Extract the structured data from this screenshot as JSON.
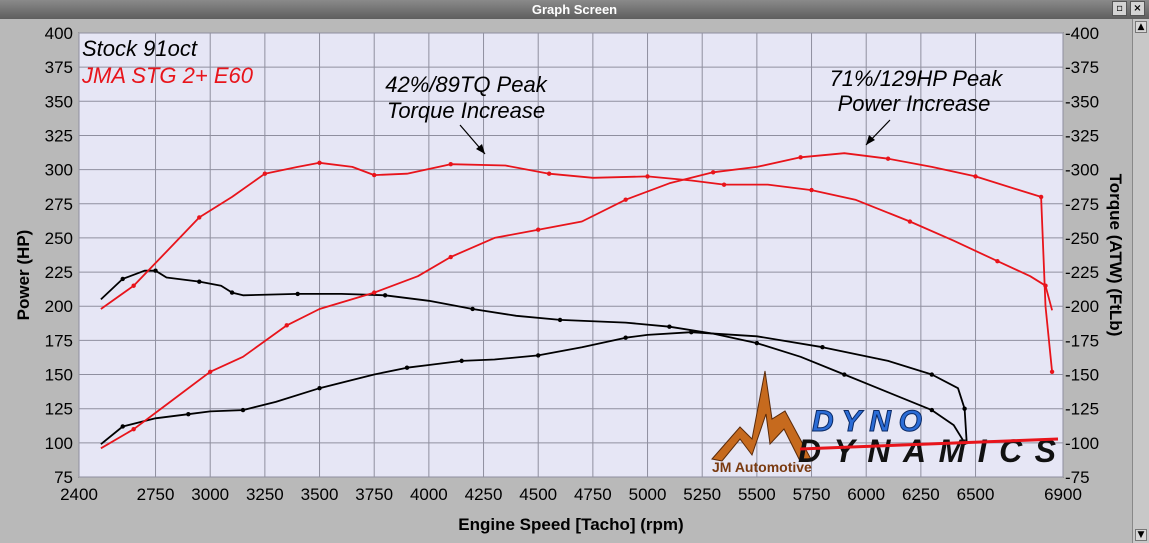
{
  "window": {
    "title": "Graph Screen"
  },
  "colors": {
    "plot_bg": "#e6e6f5",
    "grid": "#8f8f9f",
    "stock": "#000000",
    "tuned": "#e8141b"
  },
  "legend": {
    "stock": "Stock 91oct",
    "tuned": "JMA STG 2+ E60"
  },
  "annotations": {
    "torque": {
      "line1": "42%/89TQ Peak",
      "line2": "Torque Increase"
    },
    "power": {
      "line1": "71%/129HP Peak",
      "line2": "Power Increase"
    }
  },
  "logo": {
    "brand": "DYNO DYNAMICS",
    "dealer": "JM Automotive"
  },
  "chart_data": {
    "type": "line",
    "xlabel": "Engine Speed [Tacho] (rpm)",
    "ylabel_left": "Power (HP)",
    "ylabel_right": "Torque (ATW) (FtLb)",
    "xlim": [
      2400,
      6900
    ],
    "ylim": [
      75,
      400
    ],
    "x_ticks": [
      2400,
      2750,
      3000,
      3250,
      3500,
      3750,
      4000,
      4250,
      4500,
      4750,
      5000,
      5250,
      5500,
      5750,
      6000,
      6250,
      6500,
      6900
    ],
    "y_ticks": [
      75,
      100,
      125,
      150,
      175,
      200,
      225,
      250,
      275,
      300,
      325,
      350,
      375,
      400
    ],
    "grid": true,
    "legend_position": "top-left",
    "series": [
      {
        "name": "Stock 91oct",
        "metric": "power",
        "color": "#000000",
        "x": [
          2500,
          2600,
          2750,
          2900,
          3000,
          3150,
          3300,
          3500,
          3750,
          3900,
          4000,
          4150,
          4300,
          4500,
          4700,
          4900,
          5000,
          5200,
          5500,
          5800,
          6100,
          6300,
          6420,
          6450,
          6460
        ],
        "y": [
          99,
          112,
          118,
          121,
          123,
          124,
          130,
          140,
          150,
          155,
          157,
          160,
          161,
          164,
          170,
          177,
          179,
          181,
          178,
          170,
          160,
          150,
          140,
          125,
          99
        ]
      },
      {
        "name": "Stock 91oct",
        "metric": "torque",
        "color": "#000000",
        "x": [
          2500,
          2600,
          2700,
          2750,
          2800,
          2950,
          3050,
          3100,
          3150,
          3400,
          3600,
          3800,
          4000,
          4200,
          4400,
          4600,
          4900,
          5100,
          5300,
          5500,
          5700,
          5900,
          6100,
          6300,
          6400,
          6450
        ],
        "y": [
          205,
          220,
          226,
          226,
          221,
          218,
          215,
          210,
          208,
          209,
          209,
          208,
          204,
          198,
          193,
          190,
          188,
          185,
          180,
          173,
          163,
          150,
          137,
          124,
          113,
          100
        ]
      },
      {
        "name": "JMA STG 2+ E60",
        "metric": "power",
        "color": "#e8141b",
        "x": [
          2500,
          2650,
          2800,
          3000,
          3150,
          3350,
          3500,
          3750,
          3950,
          4100,
          4300,
          4500,
          4700,
          4900,
          5100,
          5300,
          5500,
          5700,
          5900,
          6100,
          6300,
          6500,
          6700,
          6800,
          6820,
          6850
        ],
        "y": [
          96,
          110,
          128,
          152,
          163,
          186,
          198,
          210,
          222,
          236,
          250,
          256,
          262,
          278,
          290,
          298,
          302,
          309,
          312,
          308,
          302,
          295,
          285,
          280,
          200,
          152
        ]
      },
      {
        "name": "JMA STG 2+ E60",
        "metric": "torque",
        "color": "#e8141b",
        "x": [
          2500,
          2650,
          2800,
          2950,
          3100,
          3250,
          3400,
          3500,
          3650,
          3750,
          3900,
          4100,
          4350,
          4550,
          4750,
          5000,
          5200,
          5350,
          5550,
          5750,
          5950,
          6200,
          6400,
          6600,
          6750,
          6820,
          6850
        ],
        "y": [
          198,
          215,
          240,
          265,
          280,
          297,
          302,
          305,
          302,
          296,
          297,
          304,
          303,
          297,
          294,
          295,
          292,
          289,
          289,
          285,
          278,
          262,
          248,
          233,
          222,
          215,
          197
        ]
      }
    ]
  }
}
